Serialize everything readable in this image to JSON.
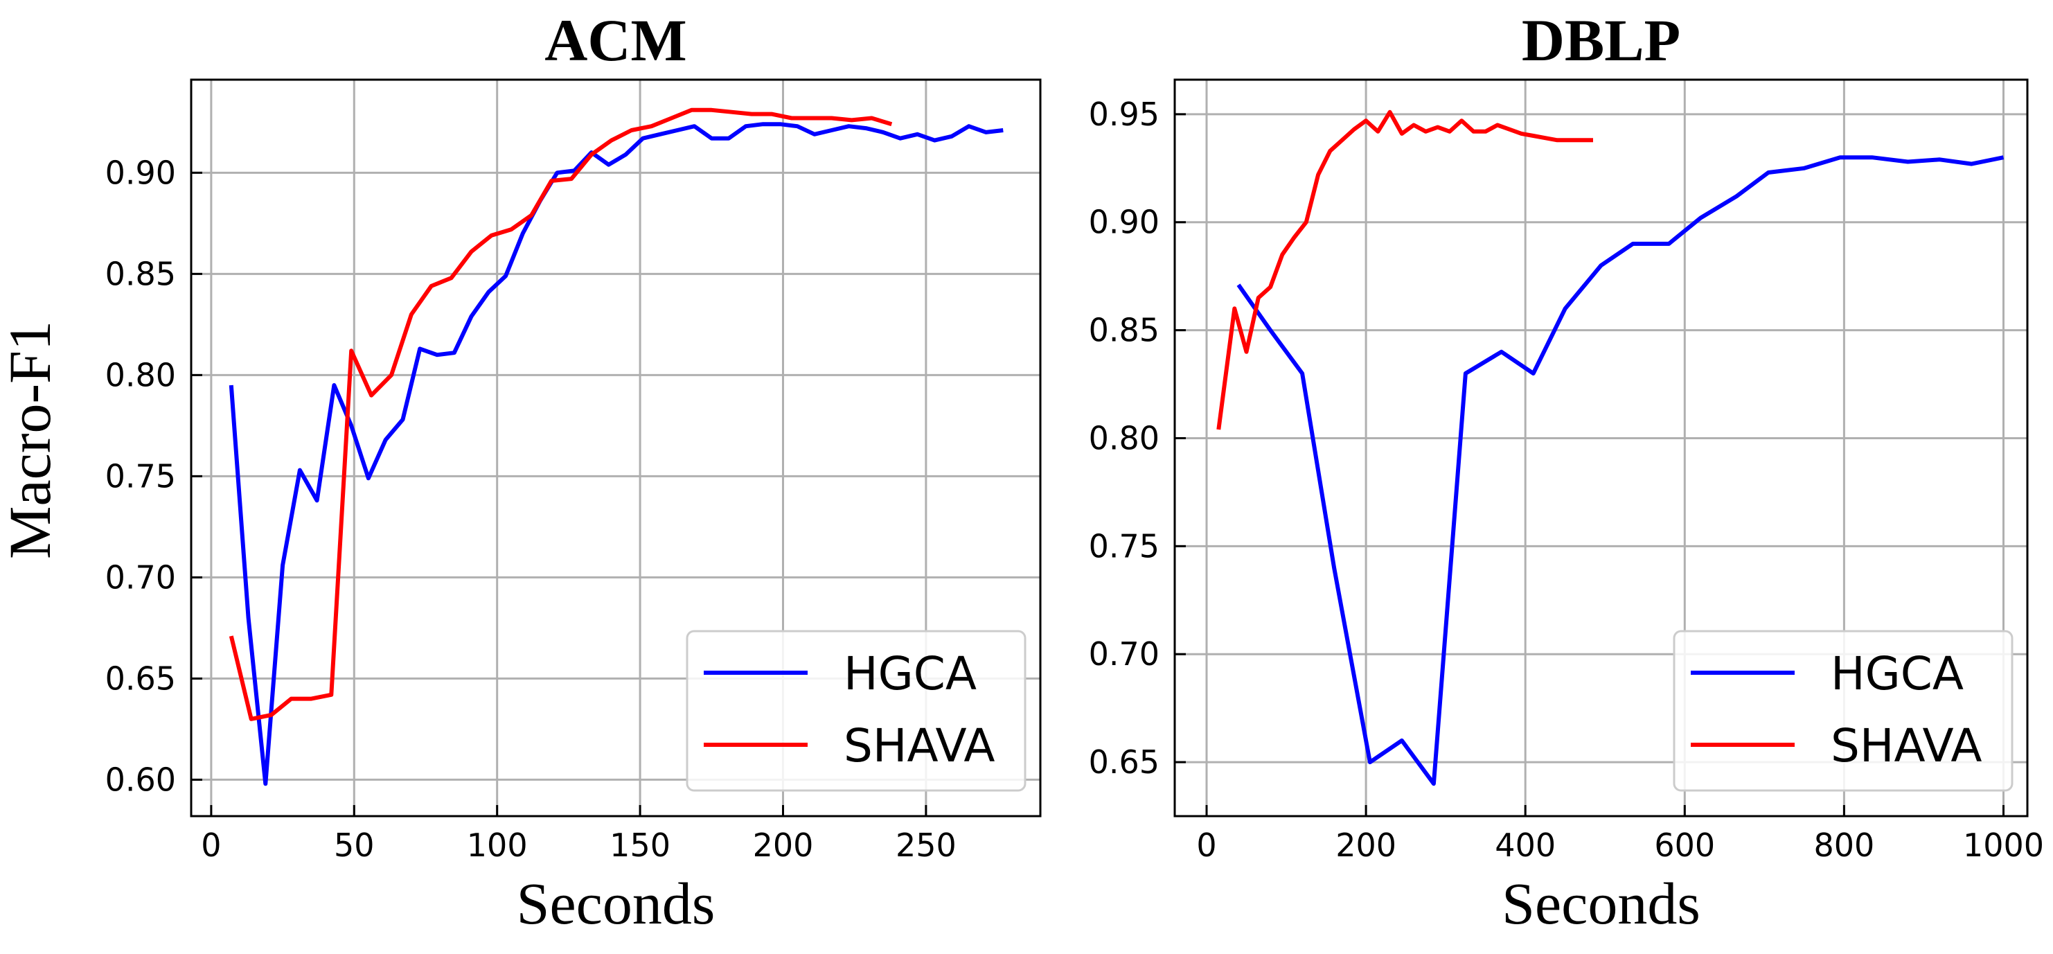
{
  "figure": {
    "ylabel": "Macro-F1"
  },
  "colors": {
    "HGCA": "#0000ff",
    "SHAVA": "#ff0000",
    "grid": "#b0b0b0"
  },
  "chart_data": [
    {
      "type": "line",
      "title": "ACM",
      "xlabel": "Seconds",
      "ylabel": "Macro-F1",
      "xlim": [
        -7,
        290
      ],
      "ylim": [
        0.582,
        0.946
      ],
      "xticks": [
        0,
        50,
        100,
        150,
        200,
        250
      ],
      "yticks": [
        0.6,
        0.65,
        0.7,
        0.75,
        0.8,
        0.85,
        0.9
      ],
      "grid": true,
      "legend": "lower-right",
      "series": [
        {
          "name": "HGCA",
          "x": [
            7,
            13,
            19,
            25,
            31,
            37,
            43,
            49,
            55,
            61,
            67,
            73,
            79,
            85,
            91,
            97,
            103,
            109,
            115,
            121,
            127,
            133,
            139,
            145,
            151,
            157,
            163,
            169,
            175,
            181,
            187,
            193,
            199,
            205,
            211,
            217,
            223,
            229,
            235,
            241,
            247,
            253,
            259,
            265,
            271,
            277
          ],
          "y": [
            0.795,
            0.68,
            0.598,
            0.706,
            0.753,
            0.738,
            0.795,
            0.775,
            0.749,
            0.768,
            0.778,
            0.813,
            0.81,
            0.811,
            0.829,
            0.841,
            0.849,
            0.87,
            0.886,
            0.9,
            0.901,
            0.91,
            0.904,
            0.909,
            0.917,
            0.919,
            0.921,
            0.923,
            0.917,
            0.917,
            0.923,
            0.924,
            0.924,
            0.923,
            0.919,
            0.921,
            0.923,
            0.922,
            0.92,
            0.917,
            0.919,
            0.916,
            0.918,
            0.923,
            0.92,
            0.921
          ]
        },
        {
          "name": "SHAVA",
          "x": [
            7,
            14,
            21,
            28,
            35,
            42,
            49,
            56,
            63,
            70,
            77,
            84,
            91,
            98,
            105,
            112,
            119,
            126,
            133,
            140,
            147,
            154,
            161,
            168,
            175,
            182,
            189,
            196,
            203,
            210,
            217,
            224,
            231,
            238
          ],
          "y": [
            0.671,
            0.63,
            0.632,
            0.64,
            0.64,
            0.642,
            0.812,
            0.79,
            0.8,
            0.83,
            0.844,
            0.848,
            0.861,
            0.869,
            0.872,
            0.879,
            0.896,
            0.897,
            0.909,
            0.916,
            0.921,
            0.923,
            0.927,
            0.931,
            0.931,
            0.93,
            0.929,
            0.929,
            0.927,
            0.927,
            0.927,
            0.926,
            0.927,
            0.924
          ]
        }
      ]
    },
    {
      "type": "line",
      "title": "DBLP",
      "xlabel": "Seconds",
      "ylabel": "",
      "xlim": [
        -40,
        1030
      ],
      "ylim": [
        0.625,
        0.966
      ],
      "xticks": [
        0,
        200,
        400,
        600,
        800,
        1000
      ],
      "yticks": [
        0.65,
        0.7,
        0.75,
        0.8,
        0.85,
        0.9,
        0.95
      ],
      "grid": true,
      "legend": "lower-right",
      "series": [
        {
          "name": "HGCA",
          "x": [
            40,
            80,
            120,
            160,
            205,
            245,
            285,
            325,
            370,
            410,
            450,
            495,
            535,
            580,
            620,
            665,
            705,
            750,
            795,
            835,
            880,
            920,
            960,
            1000
          ],
          "y": [
            0.871,
            0.85,
            0.83,
            0.74,
            0.65,
            0.66,
            0.64,
            0.83,
            0.84,
            0.83,
            0.86,
            0.88,
            0.89,
            0.89,
            0.902,
            0.912,
            0.923,
            0.925,
            0.93,
            0.93,
            0.928,
            0.929,
            0.927,
            0.93
          ]
        },
        {
          "name": "SHAVA",
          "x": [
            15,
            35,
            50,
            65,
            80,
            95,
            110,
            125,
            140,
            155,
            170,
            185,
            200,
            215,
            230,
            245,
            260,
            275,
            290,
            305,
            320,
            335,
            350,
            365,
            380,
            395,
            410,
            425,
            440,
            455,
            470,
            485
          ],
          "y": [
            0.804,
            0.86,
            0.84,
            0.865,
            0.87,
            0.885,
            0.893,
            0.9,
            0.922,
            0.933,
            0.938,
            0.943,
            0.947,
            0.942,
            0.951,
            0.941,
            0.945,
            0.942,
            0.944,
            0.942,
            0.947,
            0.942,
            0.942,
            0.945,
            0.943,
            0.941,
            0.94,
            0.939,
            0.938,
            0.938,
            0.938,
            0.938
          ]
        }
      ]
    }
  ]
}
